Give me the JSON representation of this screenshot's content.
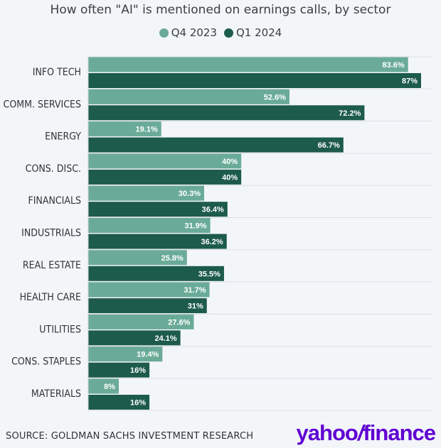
{
  "chart_data": {
    "type": "bar",
    "orientation": "horizontal",
    "title": "How often \"AI\" is mentioned on earnings calls, by sector",
    "categories": [
      "INFO TECH",
      "COMM. SERVICES",
      "ENERGY",
      "CONS. DISC.",
      "FINANCIALS",
      "INDUSTRIALS",
      "REAL ESTATE",
      "HEALTH CARE",
      "UTILITIES",
      "CONS. STAPLES",
      "MATERIALS"
    ],
    "series": [
      {
        "name": "Q4 2023",
        "color": "#6aab97",
        "values": [
          83.6,
          52.6,
          19.1,
          40,
          30.3,
          31.9,
          25.8,
          31.7,
          27.6,
          19.4,
          8
        ],
        "labels": [
          "83.6%",
          "52.6%",
          "19.1%",
          "40%",
          "30.3%",
          "31.9%",
          "25.8%",
          "31.7%",
          "27.6%",
          "19.4%",
          "8%"
        ]
      },
      {
        "name": "Q1 2024",
        "color": "#1d5b4c",
        "values": [
          87,
          72.2,
          66.7,
          40,
          36.4,
          36.2,
          35.5,
          31,
          24.1,
          16,
          16
        ],
        "labels": [
          "87%",
          "72.2%",
          "66.7%",
          "40%",
          "36.4%",
          "36.2%",
          "35.5%",
          "31%",
          "24.1%",
          "16%",
          "16%"
        ]
      }
    ],
    "xlim": [
      0,
      87
    ],
    "legend_position": "top-center",
    "grid": true
  },
  "footer": {
    "source": "SOURCE: GOLDMAN SACHS INVESTMENT RESEARCH"
  },
  "logo": {
    "text_a": "yahoo",
    "slash": "/",
    "text_b": "finance",
    "color": "#6001d2"
  }
}
